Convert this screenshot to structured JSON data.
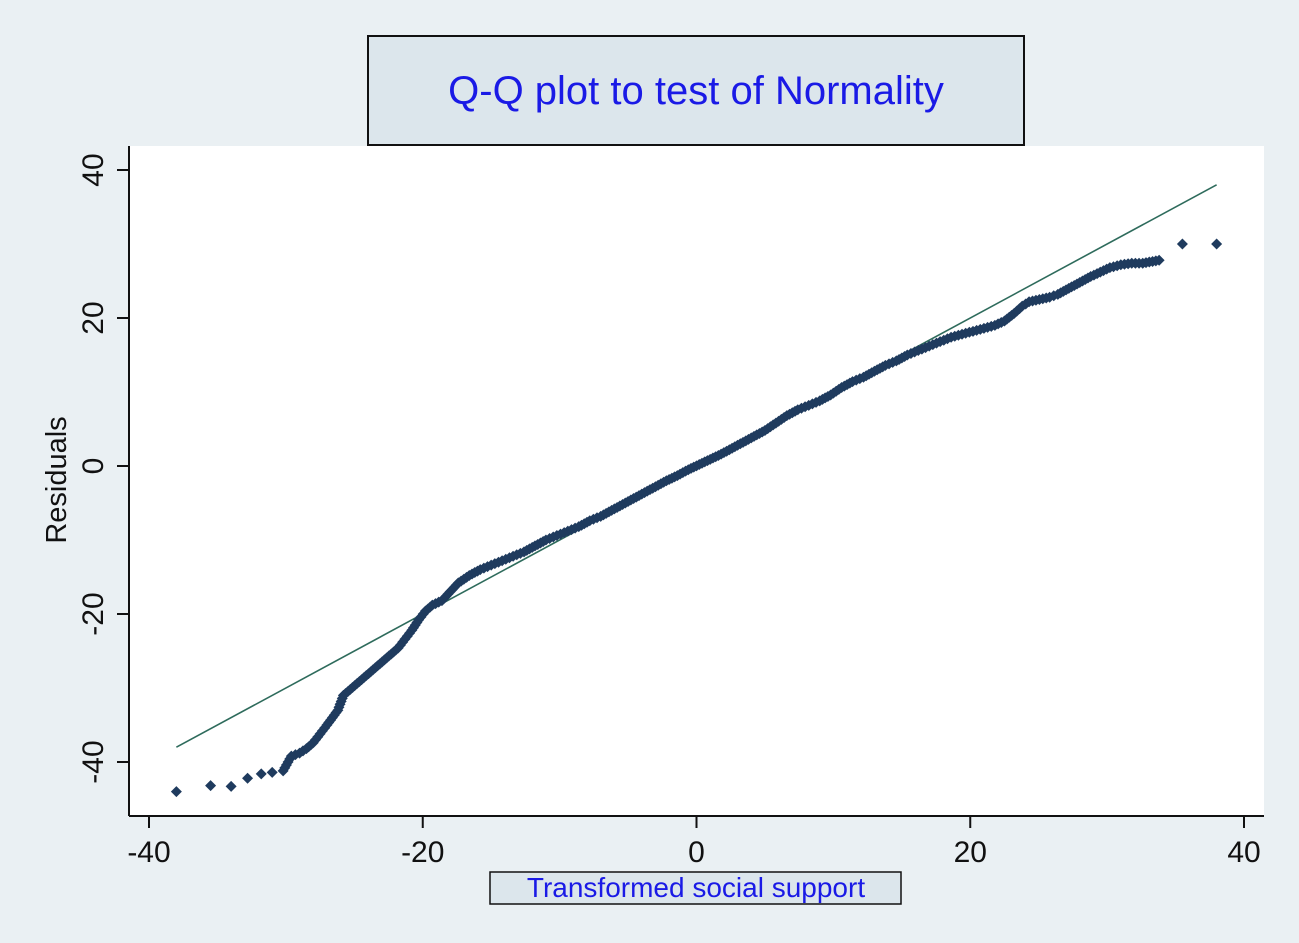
{
  "colors": {
    "background": "#eaf0f3",
    "plot_background": "#ffffff",
    "title_box": "#dce6ec",
    "title_text": "#1a1ae6",
    "xlabel_text": "#1a1ae6",
    "marker": "#1f3b5e",
    "reference_line": "#2e6b5c",
    "axis": "#111111"
  },
  "chart_data": {
    "type": "scatter",
    "title": "Q-Q plot to test of Normality",
    "xlabel": "Transformed social support",
    "ylabel": "Residuals",
    "xlim": [
      -41,
      41
    ],
    "ylim": [
      -48,
      43
    ],
    "xticks": [
      -40,
      -20,
      0,
      20,
      40
    ],
    "xtick_labels": [
      "-40",
      "-20",
      "0",
      "20",
      "40"
    ],
    "yticks": [
      -40,
      -20,
      0,
      20,
      40
    ],
    "ytick_labels": [
      "-40",
      "-20",
      "0",
      "20",
      "40"
    ],
    "grid": false,
    "marker": "diamond",
    "reference_line": {
      "x": [
        -38,
        38
      ],
      "y": [
        -38,
        38
      ]
    },
    "points": [
      [
        -38.0,
        -44.0
      ],
      [
        -35.5,
        -43.2
      ],
      [
        -34.0,
        -43.3
      ],
      [
        -32.8,
        -42.2
      ],
      [
        -31.8,
        -41.6
      ],
      [
        -31.0,
        -41.4
      ],
      [
        -30.2,
        -41.2
      ],
      [
        -29.6,
        -39.2
      ],
      [
        -29.0,
        -38.8
      ],
      [
        -28.5,
        -38.2
      ],
      [
        -28.0,
        -37.4
      ],
      [
        -27.5,
        -36.2
      ],
      [
        -27.0,
        -35.0
      ],
      [
        -26.6,
        -34.0
      ],
      [
        -26.2,
        -33.0
      ],
      [
        -25.8,
        -31.0
      ],
      [
        -25.3,
        -30.2
      ],
      [
        -24.8,
        -29.4
      ],
      [
        -24.3,
        -28.6
      ],
      [
        -23.8,
        -27.8
      ],
      [
        -23.3,
        -27.0
      ],
      [
        -22.8,
        -26.2
      ],
      [
        -22.3,
        -25.4
      ],
      [
        -21.8,
        -24.6
      ],
      [
        -21.3,
        -23.4
      ],
      [
        -20.8,
        -22.2
      ],
      [
        -20.3,
        -20.8
      ],
      [
        -19.8,
        -19.6
      ],
      [
        -19.3,
        -18.8
      ],
      [
        -18.6,
        -18.2
      ],
      [
        -18.0,
        -17.0
      ],
      [
        -17.4,
        -15.8
      ],
      [
        -16.6,
        -14.8
      ],
      [
        -15.8,
        -14.0
      ],
      [
        -15.0,
        -13.4
      ],
      [
        -14.2,
        -12.8
      ],
      [
        -13.4,
        -12.2
      ],
      [
        -12.6,
        -11.6
      ],
      [
        -11.8,
        -10.8
      ],
      [
        -11.0,
        -10.0
      ],
      [
        -10.2,
        -9.4
      ],
      [
        -9.4,
        -8.8
      ],
      [
        -8.6,
        -8.2
      ],
      [
        -7.8,
        -7.4
      ],
      [
        -7.0,
        -6.8
      ],
      [
        -6.2,
        -6.0
      ],
      [
        -5.4,
        -5.2
      ],
      [
        -4.6,
        -4.4
      ],
      [
        -3.8,
        -3.6
      ],
      [
        -3.0,
        -2.8
      ],
      [
        -2.2,
        -2.0
      ],
      [
        -1.4,
        -1.3
      ],
      [
        -0.6,
        -0.5
      ],
      [
        0.2,
        0.2
      ],
      [
        1.0,
        0.9
      ],
      [
        1.8,
        1.6
      ],
      [
        2.6,
        2.4
      ],
      [
        3.4,
        3.2
      ],
      [
        4.2,
        4.0
      ],
      [
        5.0,
        4.8
      ],
      [
        5.8,
        5.8
      ],
      [
        6.6,
        6.8
      ],
      [
        7.4,
        7.6
      ],
      [
        8.2,
        8.2
      ],
      [
        9.0,
        8.8
      ],
      [
        9.8,
        9.6
      ],
      [
        10.6,
        10.6
      ],
      [
        11.4,
        11.4
      ],
      [
        12.2,
        12.0
      ],
      [
        13.0,
        12.8
      ],
      [
        13.8,
        13.6
      ],
      [
        14.6,
        14.2
      ],
      [
        15.4,
        15.0
      ],
      [
        16.2,
        15.6
      ],
      [
        17.0,
        16.2
      ],
      [
        17.8,
        16.8
      ],
      [
        18.6,
        17.4
      ],
      [
        19.4,
        17.8
      ],
      [
        20.2,
        18.2
      ],
      [
        21.0,
        18.6
      ],
      [
        21.8,
        19.0
      ],
      [
        22.5,
        19.6
      ],
      [
        23.2,
        20.6
      ],
      [
        23.8,
        21.6
      ],
      [
        24.3,
        22.2
      ],
      [
        24.8,
        22.4
      ],
      [
        25.3,
        22.6
      ],
      [
        25.8,
        22.8
      ],
      [
        26.4,
        23.2
      ],
      [
        27.0,
        23.8
      ],
      [
        27.6,
        24.4
      ],
      [
        28.2,
        25.0
      ],
      [
        28.8,
        25.6
      ],
      [
        29.5,
        26.2
      ],
      [
        30.2,
        26.8
      ],
      [
        31.0,
        27.2
      ],
      [
        31.8,
        27.4
      ],
      [
        32.6,
        27.4
      ],
      [
        33.8,
        27.8
      ],
      [
        35.5,
        30.0
      ],
      [
        38.0,
        30.0
      ]
    ]
  }
}
